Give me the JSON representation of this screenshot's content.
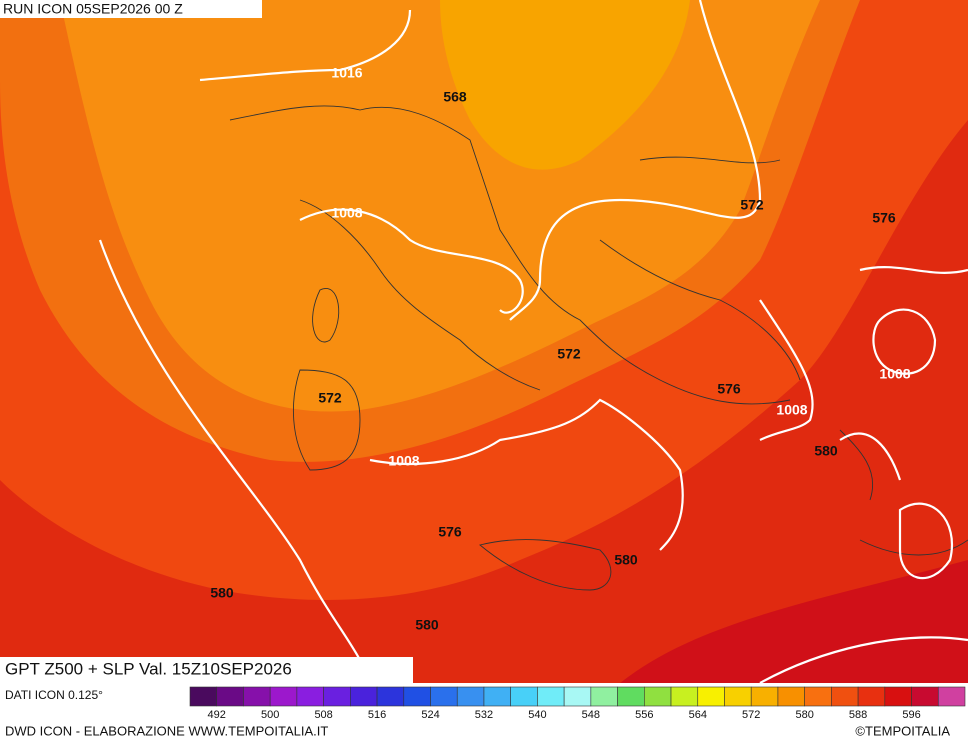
{
  "header": {
    "run": "RUN ICON 05SEP2026 00 Z"
  },
  "title": "GPT Z500 + SLP Val. 15Z10SEP2026",
  "contour_labels": [
    "1016",
    "568",
    "1008",
    "572",
    "576",
    "572",
    "572",
    "576",
    "1008",
    "1008",
    "1008",
    "580",
    "576",
    "580",
    "580",
    "580"
  ],
  "colorbar": {
    "caption": "DATI ICON 0.125°",
    "labels": [
      "492",
      "500",
      "508",
      "516",
      "524",
      "532",
      "540",
      "548",
      "556",
      "564",
      "572",
      "580",
      "588",
      "596"
    ],
    "colors": [
      "#4a0a5e",
      "#6a0a86",
      "#8610aa",
      "#9c18cc",
      "#8a1ee0",
      "#6a20e0",
      "#4a22dc",
      "#2c34dc",
      "#2050e4",
      "#2a70ec",
      "#3890f0",
      "#40b0f4",
      "#48d0f8",
      "#70ecf8",
      "#a8f8f4",
      "#90f0a0",
      "#60dc60",
      "#90e040",
      "#c8f020",
      "#f8f000",
      "#f8d000",
      "#f8b000",
      "#f89000",
      "#f87010",
      "#f05010",
      "#e83010",
      "#d81010",
      "#c80a30",
      "#d040a0"
    ]
  },
  "footer": {
    "left": "DWD ICON - ELABORAZIONE WWW.TEMPOITALIA.IT",
    "right": "©TEMPOITALIA"
  }
}
